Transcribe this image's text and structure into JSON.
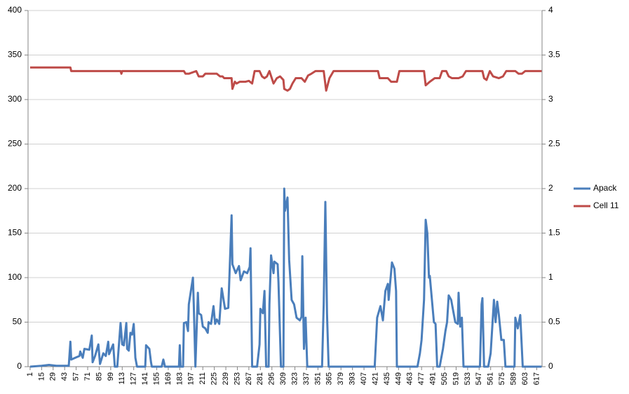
{
  "chart_data": {
    "type": "line",
    "xlim": [
      -1.5,
      623.5
    ],
    "xticks": [
      1,
      15,
      29,
      43,
      57,
      71,
      85,
      99,
      113,
      127,
      141,
      155,
      169,
      183,
      197,
      211,
      225,
      239,
      253,
      267,
      281,
      295,
      309,
      323,
      337,
      351,
      365,
      379,
      393,
      407,
      421,
      435,
      449,
      463,
      477,
      491,
      505,
      519,
      533,
      547,
      561,
      575,
      589,
      603,
      617
    ],
    "ylim": [
      0,
      400
    ],
    "yticks": [
      0,
      50,
      100,
      150,
      200,
      250,
      300,
      350,
      400
    ],
    "y2lim": [
      0,
      4
    ],
    "y2ticks": [
      0,
      0.5,
      1,
      1.5,
      2,
      2.5,
      3,
      3.5,
      4
    ],
    "grid": true,
    "legend": "right",
    "series": [
      {
        "name": "Apack",
        "color": "#4a7ebb",
        "x": [
          1,
          15,
          24,
          33,
          48,
          50,
          51,
          56,
          61,
          62,
          65,
          67,
          73,
          76,
          77,
          80,
          84,
          86,
          90,
          93,
          96,
          97,
          102,
          104,
          107,
          111,
          113,
          115,
          118,
          119,
          121,
          123,
          125,
          127,
          129,
          131,
          141,
          142,
          146,
          148,
          149,
          161,
          163,
          165,
          182,
          183,
          184,
          187,
          188,
          191,
          193,
          194,
          199,
          200,
          202,
          205,
          206,
          209,
          211,
          214,
          217,
          218,
          221,
          224,
          226,
          228,
          231,
          234,
          238,
          242,
          246,
          247,
          251,
          255,
          257,
          261,
          265,
          268,
          269,
          271,
          277,
          280,
          281,
          284,
          286,
          288,
          291,
          292,
          294,
          297,
          298,
          302,
          303,
          306,
          309,
          310,
          311,
          314,
          316,
          319,
          322,
          325,
          329,
          331,
          332,
          334,
          336,
          338,
          356,
          358,
          360,
          362,
          364,
          420,
          423,
          427,
          430,
          433,
          436,
          437,
          441,
          444,
          446,
          447,
          472,
          475,
          477,
          480,
          482,
          484,
          486,
          487,
          492,
          494,
          496,
          499,
          503,
          506,
          508,
          510,
          513,
          516,
          518,
          521,
          522,
          524,
          526,
          528,
          548,
          550,
          551,
          553,
          558,
          561,
          563,
          565,
          567,
          569,
          571,
          574,
          577,
          579,
          590,
          591,
          594,
          597,
          600,
          623
        ],
        "values": [
          0,
          1,
          2,
          1,
          1,
          28,
          8,
          10,
          12,
          17,
          10,
          20,
          19,
          35,
          5,
          12,
          25,
          3,
          15,
          12,
          28,
          14,
          25,
          0,
          0,
          49,
          25,
          24,
          49,
          20,
          18,
          38,
          36,
          48,
          10,
          0,
          0,
          24,
          20,
          5,
          0,
          0,
          8,
          0,
          0,
          24,
          0,
          0,
          49,
          50,
          40,
          70,
          100,
          70,
          0,
          83,
          60,
          58,
          45,
          43,
          38,
          50,
          48,
          68,
          48,
          53,
          48,
          88,
          65,
          66,
          170,
          115,
          105,
          113,
          97,
          107,
          105,
          112,
          133,
          0,
          0,
          25,
          65,
          60,
          85,
          0,
          0,
          70,
          125,
          105,
          118,
          115,
          95,
          0,
          0,
          200,
          175,
          190,
          120,
          75,
          70,
          55,
          52,
          56,
          124,
          20,
          55,
          0,
          0,
          70,
          185,
          60,
          0,
          0,
          55,
          68,
          52,
          85,
          93,
          75,
          117,
          110,
          85,
          0,
          0,
          15,
          30,
          75,
          165,
          150,
          100,
          102,
          50,
          48,
          0,
          0,
          20,
          40,
          50,
          80,
          75,
          60,
          50,
          48,
          83,
          45,
          55,
          0,
          0,
          70,
          77,
          0,
          0,
          15,
          45,
          75,
          50,
          73,
          58,
          30,
          30,
          0,
          0,
          55,
          43,
          58,
          0,
          0
        ]
      },
      {
        "name": "Cell 11",
        "color": "#be4b48",
        "axis": "y2",
        "x": [
          1,
          50,
          51,
          111,
          112,
          113,
          188,
          190,
          194,
          203,
          206,
          211,
          214,
          228,
          232,
          235,
          237,
          246,
          247,
          250,
          252,
          256,
          263,
          267,
          271,
          274,
          280,
          283,
          286,
          289,
          292,
          297,
          301,
          305,
          309,
          310,
          314,
          317,
          320,
          324,
          331,
          335,
          339,
          343,
          348,
          358,
          361,
          365,
          370,
          424,
          426,
          436,
          440,
          447,
          450,
          480,
          482,
          487,
          493,
          499,
          502,
          507,
          510,
          514,
          522,
          527,
          531,
          551,
          553,
          556,
          560,
          564,
          571,
          576,
          580,
          591,
          595,
          599,
          603,
          623
        ],
        "values": [
          3.36,
          3.36,
          3.32,
          3.32,
          3.29,
          3.32,
          3.32,
          3.29,
          3.29,
          3.32,
          3.26,
          3.26,
          3.29,
          3.29,
          3.26,
          3.26,
          3.24,
          3.24,
          3.12,
          3.2,
          3.18,
          3.2,
          3.2,
          3.21,
          3.18,
          3.32,
          3.32,
          3.26,
          3.24,
          3.26,
          3.32,
          3.18,
          3.24,
          3.26,
          3.22,
          3.12,
          3.1,
          3.12,
          3.18,
          3.24,
          3.24,
          3.2,
          3.27,
          3.29,
          3.32,
          3.32,
          3.1,
          3.24,
          3.32,
          3.32,
          3.24,
          3.24,
          3.2,
          3.2,
          3.32,
          3.32,
          3.16,
          3.2,
          3.24,
          3.24,
          3.32,
          3.32,
          3.26,
          3.24,
          3.24,
          3.26,
          3.32,
          3.32,
          3.24,
          3.22,
          3.32,
          3.26,
          3.24,
          3.26,
          3.32,
          3.32,
          3.29,
          3.29,
          3.32,
          3.32
        ]
      }
    ]
  }
}
